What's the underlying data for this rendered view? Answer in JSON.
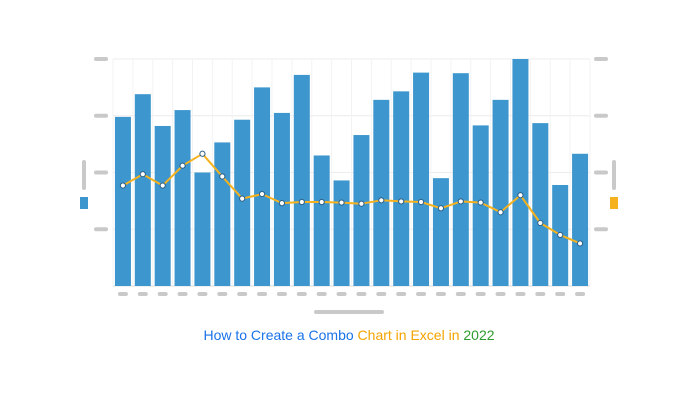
{
  "caption": {
    "part1": "How to Create a Combo",
    "part2": "Chart in Excel in",
    "part3": "2022"
  },
  "colors": {
    "bar": "#3d96cd",
    "line": "#f6b21e",
    "marker_fill": "#ffffff",
    "marker_stroke": "#2b5f86",
    "placeholder": "#c9c9c9",
    "grid": "#ececec",
    "caption_blue": "#1a73e8",
    "caption_orange": "#f4a300",
    "caption_green": "#2e9b2e"
  },
  "chart_data": {
    "type": "bar",
    "combo_line_type": "line",
    "categories_count": 24,
    "bar_ylim": [
      0,
      4
    ],
    "line_ylim": [
      0,
      4
    ],
    "grid": true,
    "tick_labels_shown": false,
    "series": [
      {
        "role": "bars",
        "axis": "primary",
        "values": [
          2.98,
          3.38,
          2.82,
          3.1,
          2.0,
          2.53,
          2.93,
          3.5,
          3.05,
          3.72,
          2.3,
          1.86,
          2.66,
          3.28,
          3.43,
          3.76,
          1.9,
          3.75,
          2.83,
          3.28,
          4.0,
          2.87,
          1.78,
          2.33
        ]
      },
      {
        "role": "line",
        "axis": "secondary",
        "values": [
          1.77,
          1.97,
          1.77,
          2.12,
          2.33,
          1.93,
          1.54,
          1.62,
          1.46,
          1.48,
          1.48,
          1.47,
          1.45,
          1.51,
          1.49,
          1.48,
          1.37,
          1.49,
          1.47,
          1.3,
          1.6,
          1.11,
          0.9,
          0.75
        ]
      }
    ]
  }
}
